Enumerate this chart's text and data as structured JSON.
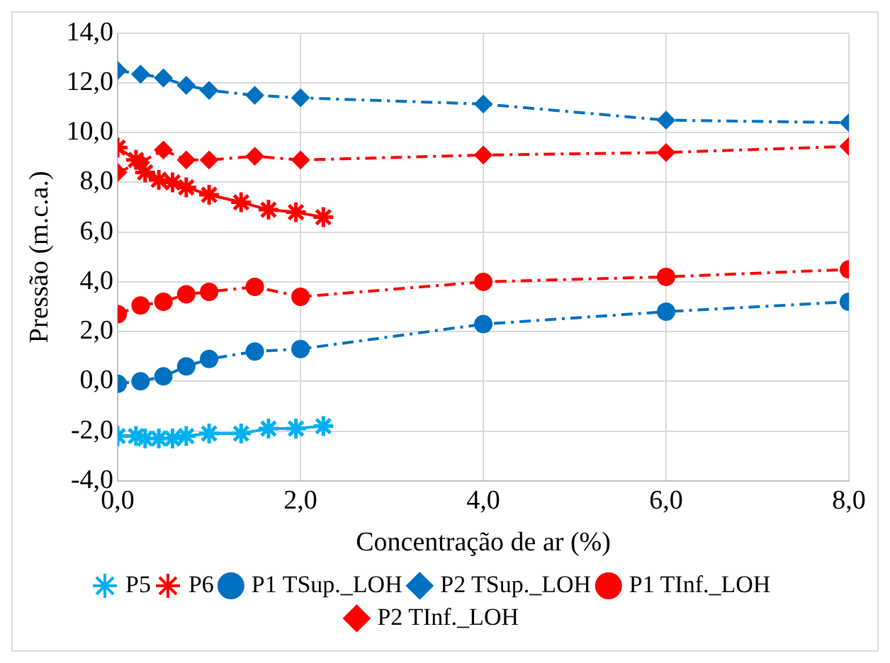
{
  "chart_data": {
    "type": "line",
    "xlabel": "Concentração de ar (%)",
    "ylabel": "Pressão (m.c.a.)",
    "xlim": [
      0,
      8
    ],
    "xticks": [
      {
        "value": 0,
        "label": "0,0"
      },
      {
        "value": 2,
        "label": "2,0"
      },
      {
        "value": 4,
        "label": "4,0"
      },
      {
        "value": 6,
        "label": "6,0"
      },
      {
        "value": 8,
        "label": "8,0"
      }
    ],
    "ylim": [
      -4,
      14
    ],
    "yticks": [
      {
        "value": -4,
        "label": "-4,0"
      },
      {
        "value": -2,
        "label": "-2,0"
      },
      {
        "value": 0,
        "label": "0,0"
      },
      {
        "value": 2,
        "label": "2,0"
      },
      {
        "value": 4,
        "label": "4,0"
      },
      {
        "value": 6,
        "label": "6,0"
      },
      {
        "value": 8,
        "label": "8,0"
      },
      {
        "value": 10,
        "label": "10,0"
      },
      {
        "value": 12,
        "label": "12,0"
      },
      {
        "value": 14,
        "label": "14,0"
      }
    ],
    "grid": true,
    "legend": "bottom",
    "series": [
      {
        "name": "P5",
        "color": "#00b0f0",
        "marker": "cross",
        "line_style": "solid",
        "x": [
          0,
          0.2,
          0.3,
          0.45,
          0.6,
          0.75,
          1.0,
          1.35,
          1.65,
          1.95,
          2.25
        ],
        "values": [
          -2.2,
          -2.2,
          -2.3,
          -2.3,
          -2.3,
          -2.2,
          -2.1,
          -2.1,
          -1.9,
          -1.9,
          -1.8
        ]
      },
      {
        "name": "P6",
        "color": "#ff0000",
        "marker": "cross",
        "line_style": "solid",
        "x": [
          0,
          0.2,
          0.3,
          0.45,
          0.6,
          0.75,
          1.0,
          1.35,
          1.65,
          1.95,
          2.25
        ],
        "values": [
          9.4,
          8.9,
          8.4,
          8.1,
          8.0,
          7.8,
          7.5,
          7.2,
          6.9,
          6.8,
          6.6
        ]
      },
      {
        "name": "P1 TSup._LOH",
        "color": "#0070c0",
        "marker": "circle",
        "line_style": "dashed",
        "x": [
          0,
          0.25,
          0.5,
          0.75,
          1,
          1.5,
          2,
          4,
          6,
          8
        ],
        "values": [
          -0.1,
          0.0,
          0.2,
          0.6,
          0.9,
          1.2,
          1.3,
          2.3,
          2.8,
          3.2
        ]
      },
      {
        "name": "P2 TSup._LOH",
        "color": "#0070c0",
        "marker": "diamond",
        "line_style": "dashed",
        "x": [
          0,
          0.25,
          0.5,
          0.75,
          1,
          1.5,
          2,
          4,
          6,
          8
        ],
        "values": [
          12.5,
          12.35,
          12.2,
          11.9,
          11.7,
          11.5,
          11.4,
          11.15,
          10.5,
          10.4
        ]
      },
      {
        "name": "P1 TInf._LOH",
        "color": "#ff0000",
        "marker": "circle",
        "line_style": "dashed",
        "x": [
          0,
          0.25,
          0.5,
          0.75,
          1,
          1.5,
          2,
          4,
          6,
          8
        ],
        "values": [
          2.7,
          3.05,
          3.2,
          3.5,
          3.6,
          3.8,
          3.4,
          4.0,
          4.2,
          4.5
        ]
      },
      {
        "name": "P2 TInf._LOH",
        "color": "#ff0000",
        "marker": "diamond",
        "line_style": "dashed",
        "x": [
          0,
          0.25,
          0.5,
          0.75,
          1,
          1.5,
          2,
          4,
          6,
          8
        ],
        "values": [
          8.4,
          8.8,
          9.3,
          8.9,
          8.9,
          9.05,
          8.9,
          9.1,
          9.2,
          9.45
        ]
      }
    ]
  }
}
